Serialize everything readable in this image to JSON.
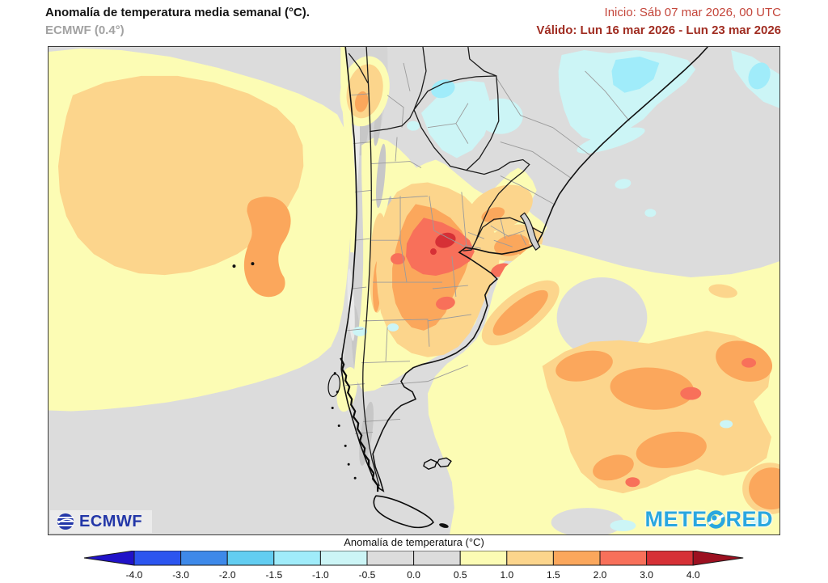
{
  "header": {
    "title": "Anomalía de temperatura media semanal (°C).",
    "subtitle": "ECMWF (0.4°)",
    "init": "Inicio: Sáb 07 mar 2026, 00 UTC",
    "valid": "Válido: Lun 16 mar 2026 - Lun 23 mar 2026",
    "init_color": "#c4463b",
    "valid_color": "#a02c21"
  },
  "map": {
    "ecmwf_text": "ECMWF",
    "brand_pre": "METE",
    "brand_post": "RED"
  },
  "legend": {
    "caption": "Anomalía de temperatura (°C)",
    "ticks": [
      "-4.0",
      "-3.0",
      "-2.0",
      "-1.5",
      "-1.0",
      "-0.5",
      "0.0",
      "0.5",
      "1.0",
      "1.5",
      "2.0",
      "3.0",
      "4.0"
    ],
    "segments": [
      "#2c55ef",
      "#3e89e9",
      "#62cdf1",
      "#a0ecfa",
      "#ccf5f6",
      "#dcdcdc",
      "#dcdcdc",
      "#fcfcb4",
      "#fcd58c",
      "#fba75c",
      "#f8705a",
      "#d63036"
    ],
    "arrow_left": "#2012c8",
    "arrow_right": "#9c1020",
    "outline": "#1a1a1a"
  },
  "palette": {
    "neutral": "#dcdcdc",
    "warm1": "#fcfcb4",
    "warm2": "#fcd58c",
    "warm3": "#fba75c",
    "warm4": "#f8705a",
    "warm5": "#d63036",
    "cool1": "#ccf5f6",
    "cool2": "#a0ecfa",
    "terrain": "#d4d4d4",
    "terrain_dark": "#c7c7c7",
    "terrain_light": "#e9e9e9",
    "coast": "#111111",
    "border_country": "#1b1b1b",
    "border_province": "#9b9b9b",
    "ecmwf_blue": "#2337a8",
    "meteored_blue": "#2aa7df"
  }
}
